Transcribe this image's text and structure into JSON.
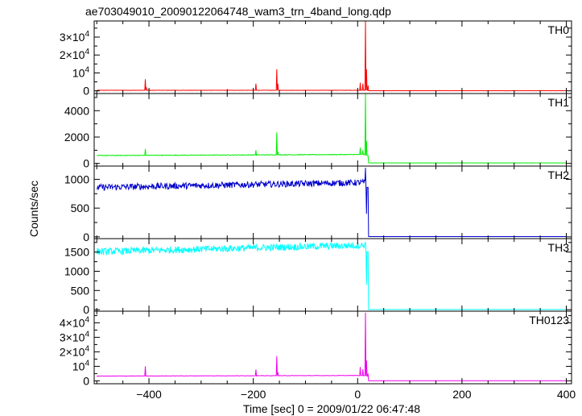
{
  "chart_data": {
    "type": "line",
    "title": "ae703049010_20090122064748_wam3_trn_4band_long.qdp",
    "xlabel": "Time [sec] 0 = 2009/01/22 06:47:48",
    "ylabel": "Counts/sec",
    "xlim": [
      -505,
      410
    ],
    "x_ticks": [
      {
        "v": -400,
        "label": "−400"
      },
      {
        "v": -200,
        "label": "−200"
      },
      {
        "v": 0,
        "label": "0"
      },
      {
        "v": 200,
        "label": "200"
      },
      {
        "v": 400,
        "label": "400"
      }
    ],
    "panels": [
      {
        "name": "TH0",
        "color": "#ff0000",
        "ylim": [
          -1500,
          39000
        ],
        "baseline": 300,
        "noise": 80,
        "trend": 0,
        "spikes": [
          [
            -407,
            6500
          ],
          [
            -405,
            2000
          ],
          [
            -250,
            800
          ],
          [
            -195,
            4000
          ],
          [
            -155,
            12000
          ],
          [
            -153,
            4000
          ],
          [
            5,
            4500
          ],
          [
            10,
            4000
          ],
          [
            15,
            39000
          ],
          [
            17,
            12000
          ],
          [
            20,
            3000
          ]
        ],
        "post_level": 50,
        "y_ticks": [
          {
            "v": 0,
            "label": "0",
            "kind": "plain"
          },
          {
            "v": 10000,
            "label": "10",
            "exp": "4",
            "kind": "pow"
          },
          {
            "v": 20000,
            "label": "2×10",
            "exp": "4",
            "kind": "pow"
          },
          {
            "v": 30000,
            "label": "3×10",
            "exp": "4",
            "kind": "pow"
          }
        ]
      },
      {
        "name": "TH1",
        "color": "#00ee00",
        "ylim": [
          -200,
          5300
        ],
        "baseline": 600,
        "noise": 25,
        "trend": 80,
        "spikes": [
          [
            -407,
            1100
          ],
          [
            -195,
            1000
          ],
          [
            -155,
            2350
          ],
          [
            -153,
            900
          ],
          [
            5,
            1200
          ],
          [
            10,
            1000
          ],
          [
            15,
            5300
          ],
          [
            17,
            1700
          ]
        ],
        "post_level": 40,
        "y_ticks": [
          {
            "v": 0,
            "label": "0",
            "kind": "plain"
          },
          {
            "v": 2000,
            "label": "2000",
            "kind": "plain"
          },
          {
            "v": 4000,
            "label": "4000",
            "kind": "plain"
          }
        ]
      },
      {
        "name": "TH2",
        "color": "#0000cc",
        "ylim": [
          -30,
          1230
        ],
        "baseline": 860,
        "noise": 55,
        "trend": 85,
        "spikes": [
          [
            15,
            1200
          ],
          [
            17,
            400
          ]
        ],
        "post_level": 5,
        "y_ticks": [
          {
            "v": 0,
            "label": "0",
            "kind": "plain"
          },
          {
            "v": 500,
            "label": "500",
            "kind": "plain"
          },
          {
            "v": 1000,
            "label": "1000",
            "kind": "plain"
          }
        ]
      },
      {
        "name": "TH3",
        "color": "#00ffff",
        "ylim": [
          -40,
          1850
        ],
        "baseline": 1510,
        "noise": 90,
        "trend": 170,
        "spikes": [
          [
            15,
            1750
          ],
          [
            17,
            650
          ]
        ],
        "post_level": 5,
        "y_ticks": [
          {
            "v": 0,
            "label": "0",
            "kind": "plain"
          },
          {
            "v": 500,
            "label": "500",
            "kind": "plain"
          },
          {
            "v": 1000,
            "label": "1000",
            "kind": "plain"
          },
          {
            "v": 1500,
            "label": "1500",
            "kind": "plain"
          }
        ]
      },
      {
        "name": "TH0123",
        "color": "#ee00ee",
        "ylim": [
          -2000,
          48000
        ],
        "baseline": 3300,
        "noise": 120,
        "trend": 400,
        "spikes": [
          [
            -407,
            10000
          ],
          [
            -195,
            7800
          ],
          [
            -155,
            17000
          ],
          [
            -153,
            6000
          ],
          [
            5,
            9500
          ],
          [
            10,
            8000
          ],
          [
            15,
            47000
          ],
          [
            17,
            14000
          ],
          [
            20,
            5000
          ]
        ],
        "post_level": 60,
        "y_ticks": [
          {
            "v": 0,
            "label": "0",
            "kind": "plain"
          },
          {
            "v": 10000,
            "label": "10",
            "exp": "4",
            "kind": "pow"
          },
          {
            "v": 20000,
            "label": "2×10",
            "exp": "4",
            "kind": "pow"
          },
          {
            "v": 30000,
            "label": "3×10",
            "exp": "4",
            "kind": "pow"
          },
          {
            "v": 40000,
            "label": "4×10",
            "exp": "4",
            "kind": "pow"
          }
        ]
      }
    ]
  }
}
